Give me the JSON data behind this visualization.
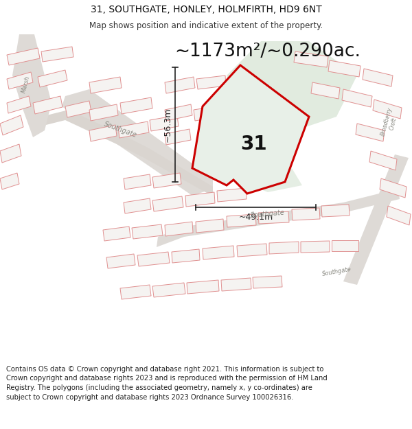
{
  "title_line1": "31, SOUTHGATE, HONLEY, HOLMFIRTH, HD9 6NT",
  "title_line2": "Map shows position and indicative extent of the property.",
  "area_text": "~1173m²/~0.290ac.",
  "label_number": "31",
  "dim_vertical": "~56.3m",
  "dim_horizontal": "~49.1m",
  "footer_text": "Contains OS data © Crown copyright and database right 2021. This information is subject to Crown copyright and database rights 2023 and is reproduced with the permission of HM Land Registry. The polygons (including the associated geometry, namely x, y co-ordinates) are subject to Crown copyright and database rights 2023 Ordnance Survey 100026316.",
  "map_bg": "#f0eeec",
  "building_fill": "#f5f3f1",
  "building_edge": "#e8a0a0",
  "road_fill": "#e8e4e0",
  "road_edge": "#d8d0c8",
  "green_fill": "#cddeca",
  "property_fill": "#e8f0e8",
  "property_edge": "#cc0000",
  "property_linewidth": 2.2,
  "dim_line_color": "#222222",
  "title_fontsize": 10,
  "subtitle_fontsize": 8.5,
  "area_fontsize": 19,
  "label_fontsize": 20,
  "dim_fontsize": 9,
  "footer_fontsize": 7.2,
  "road_label_color": "#888880",
  "road_label_size": 7
}
